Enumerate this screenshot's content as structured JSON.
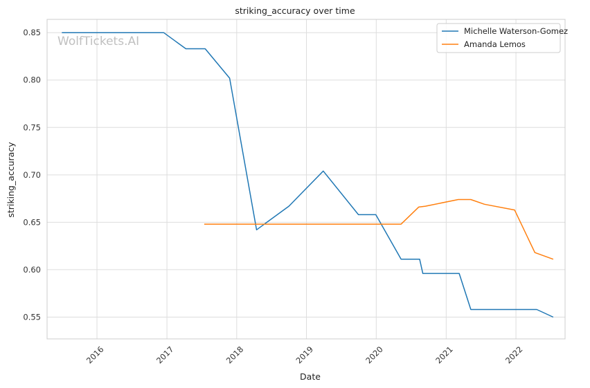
{
  "chart_data": {
    "type": "line",
    "title": "striking_accuracy over time",
    "xlabel": "Date",
    "ylabel": "striking_accuracy",
    "watermark": "WolfTickets.AI",
    "x_ticks": [
      "2016",
      "2017",
      "2018",
      "2019",
      "2020",
      "2021",
      "2022"
    ],
    "y_ticks": [
      "0.55",
      "0.60",
      "0.65",
      "0.70",
      "0.75",
      "0.80",
      "0.85"
    ],
    "xlim": [
      "2015-04-15",
      "2022-09-15"
    ],
    "ylim": [
      0.527,
      0.864
    ],
    "grid": true,
    "legend_position": "top-right",
    "series": [
      {
        "name": "Michelle Waterson-Gomez",
        "color": "#1f77b4",
        "points": [
          [
            "2015-07-01",
            0.85
          ],
          [
            "2016-12-15",
            0.85
          ],
          [
            "2017-04-10",
            0.833
          ],
          [
            "2017-07-20",
            0.833
          ],
          [
            "2017-11-25",
            0.802
          ],
          [
            "2018-04-15",
            0.642
          ],
          [
            "2018-10-01",
            0.667
          ],
          [
            "2019-03-30",
            0.704
          ],
          [
            "2019-09-30",
            0.658
          ],
          [
            "2019-12-30",
            0.658
          ],
          [
            "2020-05-10",
            0.611
          ],
          [
            "2020-08-15",
            0.611
          ],
          [
            "2020-09-01",
            0.596
          ],
          [
            "2021-03-10",
            0.596
          ],
          [
            "2021-05-10",
            0.558
          ],
          [
            "2022-04-20",
            0.558
          ],
          [
            "2022-07-15",
            0.55
          ]
        ]
      },
      {
        "name": "Amanda Lemos",
        "color": "#ff7f0e",
        "points": [
          [
            "2017-07-15",
            0.648
          ],
          [
            "2020-05-10",
            0.648
          ],
          [
            "2020-08-10",
            0.666
          ],
          [
            "2020-09-15",
            0.667
          ],
          [
            "2021-03-05",
            0.674
          ],
          [
            "2021-05-10",
            0.674
          ],
          [
            "2021-07-20",
            0.669
          ],
          [
            "2021-12-25",
            0.663
          ],
          [
            "2022-04-10",
            0.618
          ],
          [
            "2022-07-15",
            0.611
          ]
        ]
      }
    ]
  }
}
